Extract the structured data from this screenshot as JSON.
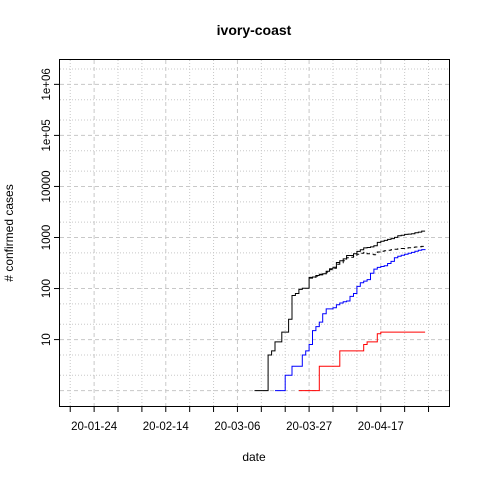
{
  "chart_data": {
    "type": "line",
    "title": "ivory-coast",
    "xlabel": "date",
    "ylabel": "# confirmed cases",
    "y_scale": "log",
    "grid": true,
    "legend": "none",
    "x_range": [
      "2020-01-14",
      "2020-05-07"
    ],
    "ylim": [
      0.5,
      3000000
    ],
    "x_tick_labels": [
      "20-01-24",
      "20-02-14",
      "20-03-06",
      "20-03-27",
      "20-04-17"
    ],
    "y_tick_labels": [
      "10",
      "100",
      "1000",
      "10000",
      "1e+05",
      "1e+06"
    ],
    "series": [
      {
        "color": "#000000",
        "dash": "solid",
        "points": [
          [
            "2020-03-11",
            1
          ],
          [
            "2020-03-14",
            1
          ],
          [
            "2020-03-15",
            5
          ],
          [
            "2020-03-16",
            6
          ],
          [
            "2020-03-17",
            9
          ],
          [
            "2020-03-18",
            9
          ],
          [
            "2020-03-19",
            14
          ],
          [
            "2020-03-20",
            14
          ],
          [
            "2020-03-21",
            25
          ],
          [
            "2020-03-22",
            73
          ],
          [
            "2020-03-23",
            80
          ],
          [
            "2020-03-24",
            96
          ],
          [
            "2020-03-25",
            101
          ],
          [
            "2020-03-26",
            101
          ],
          [
            "2020-03-27",
            165
          ],
          [
            "2020-03-28",
            168
          ],
          [
            "2020-03-29",
            180
          ],
          [
            "2020-03-30",
            190
          ],
          [
            "2020-03-31",
            194
          ],
          [
            "2020-04-01",
            218
          ],
          [
            "2020-04-02",
            245
          ],
          [
            "2020-04-03",
            261
          ],
          [
            "2020-04-04",
            323
          ],
          [
            "2020-04-05",
            349
          ],
          [
            "2020-04-06",
            381
          ],
          [
            "2020-04-07",
            444
          ],
          [
            "2020-04-08",
            444
          ],
          [
            "2020-04-09",
            480
          ],
          [
            "2020-04-10",
            533
          ],
          [
            "2020-04-11",
            574
          ],
          [
            "2020-04-12",
            626
          ],
          [
            "2020-04-13",
            638
          ],
          [
            "2020-04-14",
            654
          ],
          [
            "2020-04-15",
            688
          ],
          [
            "2020-04-16",
            801
          ],
          [
            "2020-04-17",
            847
          ],
          [
            "2020-04-18",
            879
          ],
          [
            "2020-04-19",
            916
          ],
          [
            "2020-04-20",
            952
          ],
          [
            "2020-04-21",
            1004
          ],
          [
            "2020-04-22",
            1077
          ],
          [
            "2020-04-23",
            1111
          ],
          [
            "2020-04-24",
            1150
          ],
          [
            "2020-04-25",
            1164
          ],
          [
            "2020-04-26",
            1183
          ],
          [
            "2020-04-27",
            1238
          ],
          [
            "2020-04-28",
            1275
          ],
          [
            "2020-04-29",
            1333
          ],
          [
            "2020-04-30",
            1333
          ]
        ]
      },
      {
        "color": "#000000",
        "dash": "dashed",
        "points": [
          [
            "2020-03-27",
            160
          ],
          [
            "2020-03-28",
            165
          ],
          [
            "2020-03-29",
            175
          ],
          [
            "2020-03-30",
            185
          ],
          [
            "2020-03-31",
            190
          ],
          [
            "2020-04-01",
            210
          ],
          [
            "2020-04-02",
            235
          ],
          [
            "2020-04-03",
            250
          ],
          [
            "2020-04-04",
            300
          ],
          [
            "2020-04-05",
            320
          ],
          [
            "2020-04-06",
            350
          ],
          [
            "2020-04-07",
            400
          ],
          [
            "2020-04-08",
            410
          ],
          [
            "2020-04-09",
            430
          ],
          [
            "2020-04-10",
            470
          ],
          [
            "2020-04-11",
            490
          ],
          [
            "2020-04-12",
            510
          ],
          [
            "2020-04-13",
            480
          ],
          [
            "2020-04-14",
            470
          ],
          [
            "2020-04-15",
            460
          ],
          [
            "2020-04-16",
            520
          ],
          [
            "2020-04-17",
            540
          ],
          [
            "2020-04-18",
            550
          ],
          [
            "2020-04-19",
            560
          ],
          [
            "2020-04-20",
            580
          ],
          [
            "2020-04-21",
            590
          ],
          [
            "2020-04-22",
            600
          ],
          [
            "2020-04-23",
            610
          ],
          [
            "2020-04-24",
            620
          ],
          [
            "2020-04-25",
            630
          ],
          [
            "2020-04-26",
            640
          ],
          [
            "2020-04-27",
            650
          ],
          [
            "2020-04-28",
            660
          ],
          [
            "2020-04-29",
            670
          ],
          [
            "2020-04-30",
            680
          ]
        ]
      },
      {
        "color": "#0000ff",
        "dash": "solid",
        "points": [
          [
            "2020-03-17",
            1
          ],
          [
            "2020-03-19",
            1
          ],
          [
            "2020-03-20",
            2
          ],
          [
            "2020-03-21",
            2
          ],
          [
            "2020-03-22",
            3
          ],
          [
            "2020-03-23",
            3
          ],
          [
            "2020-03-24",
            3
          ],
          [
            "2020-03-25",
            5
          ],
          [
            "2020-03-26",
            6
          ],
          [
            "2020-03-27",
            8
          ],
          [
            "2020-03-28",
            15
          ],
          [
            "2020-03-29",
            18
          ],
          [
            "2020-03-30",
            22
          ],
          [
            "2020-03-31",
            32
          ],
          [
            "2020-04-01",
            40
          ],
          [
            "2020-04-02",
            40
          ],
          [
            "2020-04-03",
            42
          ],
          [
            "2020-04-04",
            48
          ],
          [
            "2020-04-05",
            52
          ],
          [
            "2020-04-06",
            55
          ],
          [
            "2020-04-07",
            57
          ],
          [
            "2020-04-08",
            70
          ],
          [
            "2020-04-09",
            80
          ],
          [
            "2020-04-10",
            110
          ],
          [
            "2020-04-11",
            130
          ],
          [
            "2020-04-12",
            140
          ],
          [
            "2020-04-13",
            150
          ],
          [
            "2020-04-14",
            200
          ],
          [
            "2020-04-15",
            240
          ],
          [
            "2020-04-16",
            260
          ],
          [
            "2020-04-17",
            270
          ],
          [
            "2020-04-18",
            280
          ],
          [
            "2020-04-19",
            310
          ],
          [
            "2020-04-20",
            340
          ],
          [
            "2020-04-21",
            400
          ],
          [
            "2020-04-22",
            430
          ],
          [
            "2020-04-23",
            450
          ],
          [
            "2020-04-24",
            470
          ],
          [
            "2020-04-25",
            490
          ],
          [
            "2020-04-26",
            510
          ],
          [
            "2020-04-27",
            540
          ],
          [
            "2020-04-28",
            560
          ],
          [
            "2020-04-29",
            580
          ],
          [
            "2020-04-30",
            590
          ]
        ]
      },
      {
        "color": "#ff0000",
        "dash": "solid",
        "points": [
          [
            "2020-03-24",
            1
          ],
          [
            "2020-03-29",
            1
          ],
          [
            "2020-03-30",
            3
          ],
          [
            "2020-04-04",
            3
          ],
          [
            "2020-04-05",
            6
          ],
          [
            "2020-04-11",
            6
          ],
          [
            "2020-04-12",
            8
          ],
          [
            "2020-04-13",
            9
          ],
          [
            "2020-04-15",
            9
          ],
          [
            "2020-04-16",
            13
          ],
          [
            "2020-04-17",
            14
          ],
          [
            "2020-04-30",
            14
          ]
        ]
      }
    ]
  }
}
